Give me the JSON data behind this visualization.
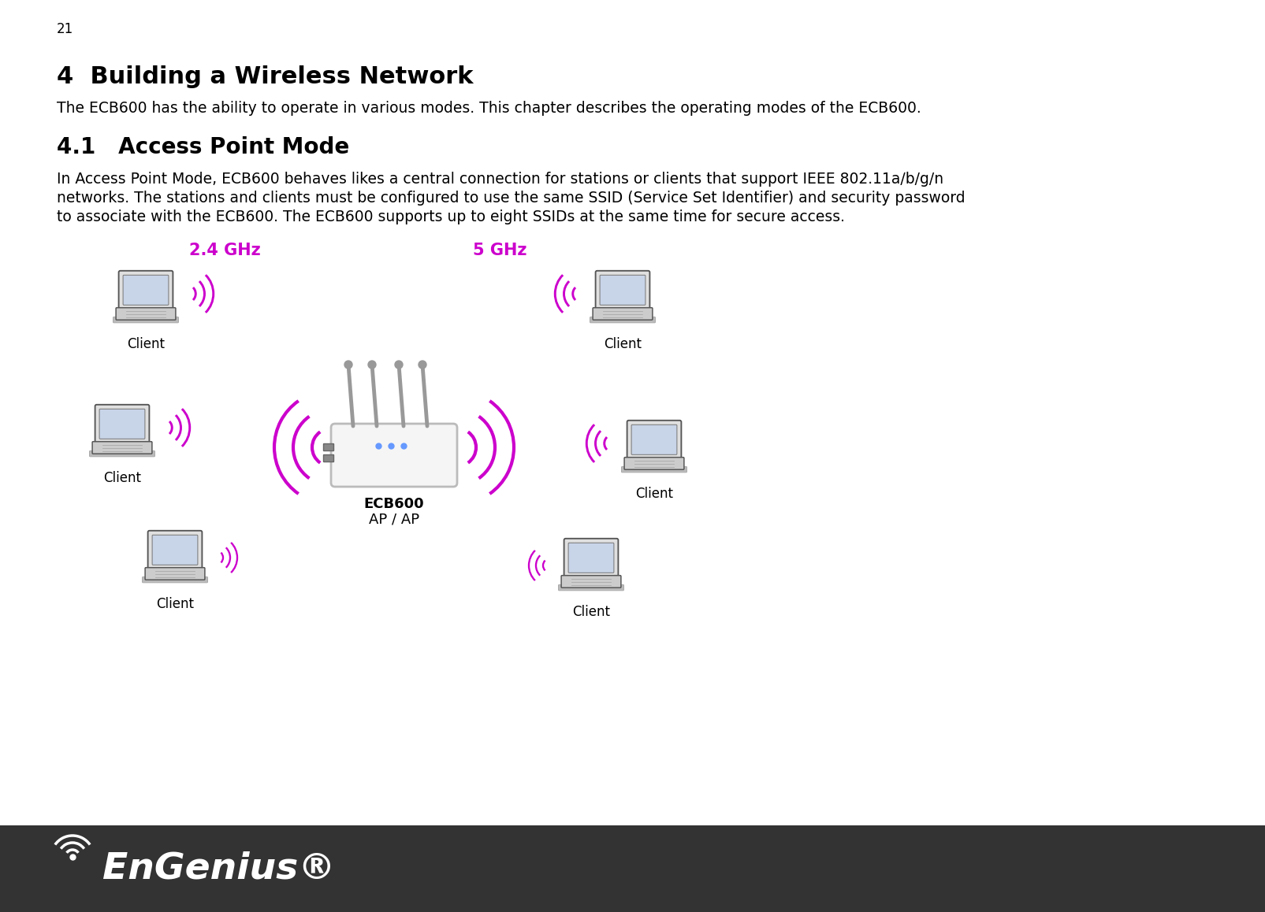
{
  "page_number": "21",
  "chapter_title": "4  Building a Wireless Network",
  "chapter_body": "The ECB600 has the ability to operate in various modes. This chapter describes the operating modes of the ECB600.",
  "section_title": "4.1   Access Point Mode",
  "section_body_line1": "In Access Point Mode, ECB600 behaves likes a central connection for stations or clients that support IEEE 802.11a/b/g/n",
  "section_body_line2": "networks. The stations and clients must be configured to use the same SSID (Service Set Identifier) and security password",
  "section_body_line3": "to associate with the ECB600. The ECB600 supports up to eight SSIDs at the same time for secure access.",
  "label_24ghz": "2.4 GHz",
  "label_5ghz": "5 GHz",
  "label_ecb600": "ECB600",
  "label_apap": "AP / AP",
  "label_client": "Client",
  "footer_bg": "#333333",
  "footer_text": "EnGenius®",
  "bg_color": "#ffffff",
  "text_color": "#000000",
  "magenta_color": "#cc00cc",
  "title_fontsize": 22,
  "section_fontsize": 20,
  "body_fontsize": 13.5,
  "page_num_fontsize": 12
}
